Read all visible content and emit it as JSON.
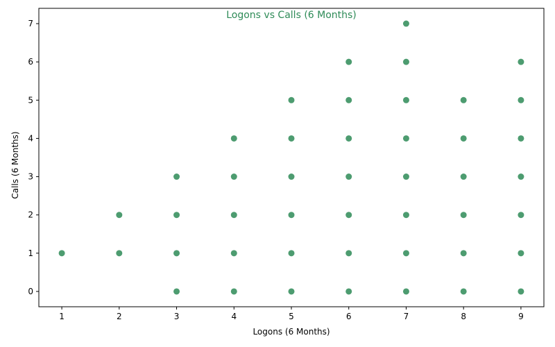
{
  "chart_data": {
    "type": "scatter",
    "title": "Logons vs Calls (6 Months)",
    "xlabel": "Logons (6 Months)",
    "ylabel": "Calls (6 Months)",
    "xlim": [
      0.6,
      9.4
    ],
    "ylim": [
      -0.4,
      7.4
    ],
    "xticks": [
      1,
      2,
      3,
      4,
      5,
      6,
      7,
      8,
      9
    ],
    "yticks": [
      0,
      1,
      2,
      3,
      4,
      5,
      6,
      7
    ],
    "grid": false,
    "colors": {
      "point": "#2e8b57",
      "title": "#2e8b57"
    },
    "points": [
      {
        "x": 1,
        "y": 1
      },
      {
        "x": 2,
        "y": 1
      },
      {
        "x": 2,
        "y": 2
      },
      {
        "x": 3,
        "y": 0
      },
      {
        "x": 3,
        "y": 1
      },
      {
        "x": 3,
        "y": 2
      },
      {
        "x": 3,
        "y": 3
      },
      {
        "x": 4,
        "y": 0
      },
      {
        "x": 4,
        "y": 1
      },
      {
        "x": 4,
        "y": 2
      },
      {
        "x": 4,
        "y": 3
      },
      {
        "x": 4,
        "y": 4
      },
      {
        "x": 5,
        "y": 0
      },
      {
        "x": 5,
        "y": 1
      },
      {
        "x": 5,
        "y": 2
      },
      {
        "x": 5,
        "y": 3
      },
      {
        "x": 5,
        "y": 4
      },
      {
        "x": 5,
        "y": 5
      },
      {
        "x": 6,
        "y": 0
      },
      {
        "x": 6,
        "y": 1
      },
      {
        "x": 6,
        "y": 2
      },
      {
        "x": 6,
        "y": 3
      },
      {
        "x": 6,
        "y": 4
      },
      {
        "x": 6,
        "y": 5
      },
      {
        "x": 6,
        "y": 6
      },
      {
        "x": 7,
        "y": 0
      },
      {
        "x": 7,
        "y": 1
      },
      {
        "x": 7,
        "y": 2
      },
      {
        "x": 7,
        "y": 3
      },
      {
        "x": 7,
        "y": 4
      },
      {
        "x": 7,
        "y": 5
      },
      {
        "x": 7,
        "y": 6
      },
      {
        "x": 7,
        "y": 7
      },
      {
        "x": 8,
        "y": 0
      },
      {
        "x": 8,
        "y": 1
      },
      {
        "x": 8,
        "y": 2
      },
      {
        "x": 8,
        "y": 3
      },
      {
        "x": 8,
        "y": 4
      },
      {
        "x": 8,
        "y": 5
      },
      {
        "x": 9,
        "y": 0
      },
      {
        "x": 9,
        "y": 1
      },
      {
        "x": 9,
        "y": 2
      },
      {
        "x": 9,
        "y": 3
      },
      {
        "x": 9,
        "y": 4
      },
      {
        "x": 9,
        "y": 5
      },
      {
        "x": 9,
        "y": 6
      }
    ]
  }
}
